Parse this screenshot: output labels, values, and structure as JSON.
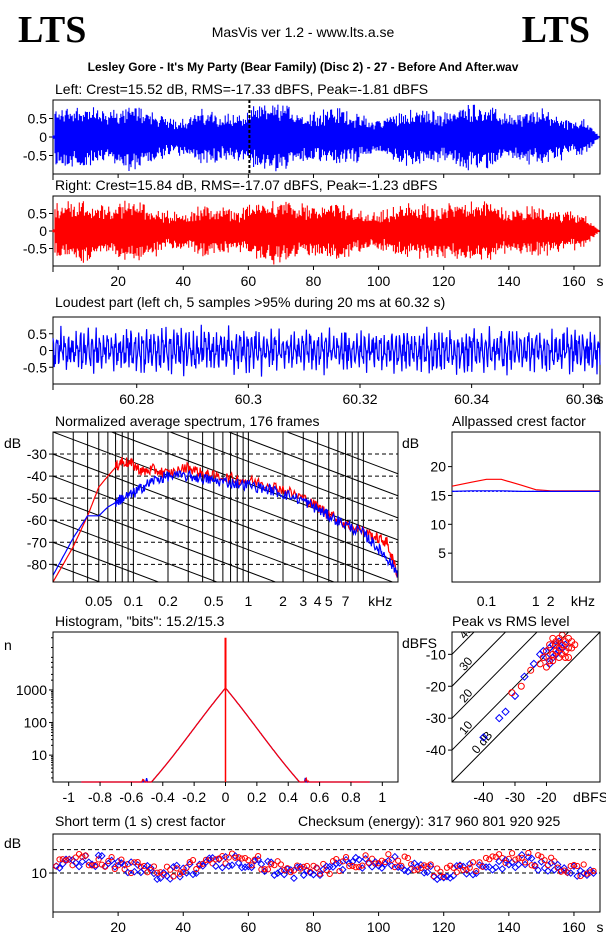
{
  "header": {
    "logo_left": "LTS",
    "logo_right": "LTS",
    "app_title": "MasVis ver 1.2 - www.lts.a.se",
    "track_title": "Lesley Gore - It's My Party (Bear Family) (Disc 2) - 27 - Before And After.wav"
  },
  "colors": {
    "left": "#0000ff",
    "right": "#ff0000",
    "axis": "#000000"
  },
  "chart_data": [
    {
      "type": "line",
      "id": "left-waveform",
      "title": "Left: Crest=15.52 dB, RMS=-17.33 dBFS, Peak=-1.81 dBFS",
      "ytick_labels": [
        "0.5",
        "0",
        "-0.5"
      ],
      "yticks": [
        0.5,
        0,
        -0.5
      ],
      "ylim": [
        -1,
        1
      ],
      "xlim": [
        0,
        168
      ],
      "marker_x": 60.32
    },
    {
      "type": "line",
      "id": "right-waveform",
      "title": "Right: Crest=15.84 dB, RMS=-17.07 dBFS, Peak=-1.23 dBFS",
      "ytick_labels": [
        "0.5",
        "0",
        "-0.5"
      ],
      "yticks": [
        0.5,
        0,
        -0.5
      ],
      "ylim": [
        -1,
        1
      ],
      "xlim": [
        0,
        168
      ],
      "xtick_labels": [
        "20",
        "40",
        "60",
        "80",
        "100",
        "120",
        "140",
        "160",
        "s"
      ],
      "xticks": [
        20,
        40,
        60,
        80,
        100,
        120,
        140,
        160,
        168
      ]
    },
    {
      "type": "line",
      "id": "loudest-part",
      "title": "Loudest part (left  ch, 5 samples >95% during 20 ms at 60.32 s)",
      "ytick_labels": [
        "0.5",
        "0",
        "-0.5"
      ],
      "yticks": [
        0.5,
        0,
        -0.5
      ],
      "ylim": [
        -1,
        1
      ],
      "xlim": [
        60.265,
        60.363
      ],
      "xtick_labels": [
        "60.28",
        "60.3",
        "60.32",
        "60.34",
        "60.36",
        "s"
      ],
      "xticks": [
        60.28,
        60.3,
        60.32,
        60.34,
        60.36,
        60.363
      ]
    },
    {
      "type": "line",
      "id": "spectrum",
      "title": "Normalized average spectrum, 176 frames",
      "ylabel": "dB",
      "ytick_labels": [
        "-30",
        "-40",
        "-50",
        "-60",
        "-70",
        "-80"
      ],
      "yticks": [
        -30,
        -40,
        -50,
        -60,
        -70,
        -80
      ],
      "ylim": [
        -88,
        -20
      ],
      "xlim": [
        0.02,
        20
      ],
      "xscale": "log",
      "xtick_labels": [
        "0.05",
        "0.1",
        "0.2",
        "0.5",
        "1",
        "2",
        "3",
        "4",
        "5",
        "7",
        "kHz"
      ],
      "xticks": [
        0.05,
        0.1,
        0.2,
        0.5,
        1,
        2,
        3,
        4,
        5,
        7,
        14
      ],
      "series": [
        {
          "color": "#ff0000",
          "x": [
            0.02,
            0.03,
            0.04,
            0.05,
            0.06,
            0.07,
            0.08,
            0.1,
            0.12,
            0.15,
            0.2,
            0.3,
            0.4,
            0.5,
            0.7,
            1,
            1.5,
            2,
            3,
            4,
            5,
            7,
            10,
            13,
            16,
            20
          ],
          "y": [
            -88,
            -72,
            -58,
            -45,
            -40,
            -36,
            -33,
            -35,
            -38,
            -37,
            -39,
            -36,
            -39,
            -40,
            -41,
            -42,
            -44,
            -46,
            -50,
            -54,
            -57,
            -62,
            -65,
            -68,
            -70,
            -85
          ]
        },
        {
          "color": "#0000ff",
          "x": [
            0.02,
            0.03,
            0.04,
            0.05,
            0.06,
            0.07,
            0.08,
            0.1,
            0.12,
            0.15,
            0.2,
            0.3,
            0.4,
            0.5,
            0.7,
            1,
            1.5,
            2,
            3,
            4,
            5,
            7,
            10,
            13,
            16,
            20
          ],
          "y": [
            -85,
            -68,
            -58,
            -58,
            -54,
            -52,
            -50,
            -48,
            -45,
            -42,
            -40,
            -40,
            -41,
            -42,
            -43,
            -44,
            -46,
            -48,
            -51,
            -55,
            -58,
            -62,
            -66,
            -72,
            -77,
            -84
          ]
        }
      ]
    },
    {
      "type": "line",
      "id": "allpassed-crest",
      "title": "Allpassed crest factor",
      "ylabel": "dB",
      "ytick_labels": [
        "20",
        "15",
        "10",
        "5"
      ],
      "yticks": [
        20,
        15,
        10,
        5
      ],
      "ylim": [
        0,
        26
      ],
      "xlim": [
        0.02,
        20
      ],
      "xscale": "log",
      "xtick_labels": [
        "0.1",
        "1",
        "2",
        "kHz"
      ],
      "xticks": [
        0.1,
        1,
        2,
        9
      ],
      "series": [
        {
          "color": "#ff0000",
          "x": [
            0.02,
            0.05,
            0.1,
            0.2,
            0.5,
            1,
            2,
            5,
            20
          ],
          "y": [
            16.6,
            17.3,
            17.8,
            17.8,
            16.8,
            16.0,
            15.8,
            15.8,
            15.8
          ]
        },
        {
          "color": "#0000ff",
          "x": [
            0.02,
            0.05,
            0.1,
            0.2,
            0.5,
            1,
            2,
            5,
            20
          ],
          "y": [
            15.7,
            15.8,
            15.8,
            15.8,
            15.7,
            15.7,
            15.7,
            15.7,
            15.7
          ]
        }
      ]
    },
    {
      "type": "line",
      "id": "histogram",
      "title": "Histogram, \"bits\": 15.2/15.3",
      "ylabel": "n",
      "yscale": "log",
      "ytick_labels": [
        "1000",
        "100",
        "10"
      ],
      "yticks": [
        1000,
        100,
        10
      ],
      "ylim": [
        1.5,
        60000
      ],
      "xlim": [
        -1.1,
        1.1
      ],
      "xtick_labels": [
        "-1",
        "-0.8",
        "-0.6",
        "-0.4",
        "-0.2",
        "0",
        "0.2",
        "0.4",
        "0.6",
        "0.8",
        "1"
      ],
      "xticks": [
        -1,
        -0.8,
        -0.6,
        -0.4,
        -0.2,
        0,
        0.2,
        0.4,
        0.6,
        0.8,
        1
      ],
      "center_peak": 40000,
      "center_level": 1000
    },
    {
      "type": "scatter",
      "id": "peak-vs-rms",
      "title": "Peak vs RMS level",
      "ylabel": "dBFS",
      "ytick_labels": [
        "-10",
        "-20",
        "-30",
        "-40"
      ],
      "yticks": [
        -10,
        -20,
        -30,
        -40
      ],
      "ylim": [
        -50,
        -3
      ],
      "xlim": [
        -50,
        -3
      ],
      "xtick_labels": [
        "-40",
        "-30",
        "-20",
        "dBFS"
      ],
      "xticks": [
        -40,
        -30,
        -20,
        -10
      ],
      "diagonal_labels": [
        "40",
        "30",
        "20",
        "10",
        "0 dB"
      ],
      "diagonal_offsets": [
        40,
        30,
        20,
        10,
        0
      ],
      "points_red": [
        [
          -18,
          -5
        ],
        [
          -17,
          -6
        ],
        [
          -16,
          -5
        ],
        [
          -15,
          -7
        ],
        [
          -14,
          -6
        ],
        [
          -13,
          -5
        ],
        [
          -12,
          -8
        ],
        [
          -17,
          -9
        ],
        [
          -16,
          -8
        ],
        [
          -15,
          -10
        ],
        [
          -14,
          -9
        ],
        [
          -13,
          -11
        ],
        [
          -18,
          -12
        ],
        [
          -20,
          -9
        ],
        [
          -19,
          -7
        ],
        [
          -21,
          -11
        ],
        [
          -22,
          -13
        ],
        [
          -25,
          -15
        ],
        [
          -28,
          -20
        ],
        [
          -31,
          -22
        ],
        [
          -12,
          -6
        ],
        [
          -11,
          -7
        ],
        [
          -15,
          -4
        ],
        [
          -14,
          -11
        ],
        [
          -18,
          -10
        ],
        [
          -19,
          -12
        ],
        [
          -16,
          -11
        ],
        [
          -13,
          -8
        ],
        [
          -17,
          -7
        ],
        [
          -20,
          -14
        ]
      ],
      "points_blue": [
        [
          -19,
          -8
        ],
        [
          -18,
          -7
        ],
        [
          -17,
          -10
        ],
        [
          -16,
          -9
        ],
        [
          -20,
          -11
        ],
        [
          -21,
          -9
        ],
        [
          -22,
          -10
        ],
        [
          -24,
          -13
        ],
        [
          -27,
          -17
        ],
        [
          -30,
          -23
        ],
        [
          -33,
          -28
        ],
        [
          -35,
          -30
        ],
        [
          -40,
          -36
        ],
        [
          -15,
          -8
        ],
        [
          -14,
          -7
        ],
        [
          -16,
          -6
        ],
        [
          -18,
          -11
        ],
        [
          -19,
          -13
        ]
      ]
    },
    {
      "type": "scatter",
      "id": "short-term-crest",
      "title": "Short term (1 s) crest factor",
      "ylabel": "dB",
      "ytick_labels": [
        "10"
      ],
      "yticks": [
        10
      ],
      "ylim": [
        0,
        20
      ],
      "xlim": [
        0,
        168
      ],
      "reference_lines": [
        10,
        16
      ],
      "xtick_labels": [
        "20",
        "40",
        "60",
        "80",
        "100",
        "120",
        "140",
        "160",
        "s"
      ],
      "xticks": [
        20,
        40,
        60,
        80,
        100,
        120,
        140,
        160,
        168
      ]
    }
  ],
  "checksum": "Checksum (energy):  317 960 801 920 925"
}
